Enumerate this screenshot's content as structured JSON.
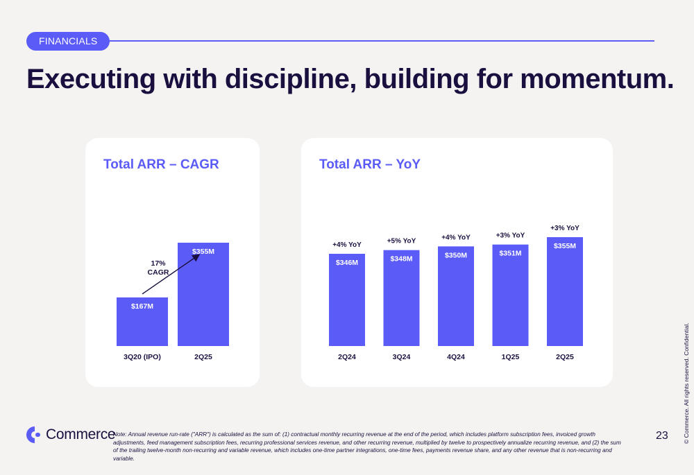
{
  "header": {
    "section_label": "FINANCIALS",
    "headline": "Executing with discipline, building for momentum."
  },
  "colors": {
    "accent": "#5b5bf7",
    "text": "#1b0f3f",
    "card": "#ffffff",
    "background": "#f4f3f2"
  },
  "chart_data": [
    {
      "type": "bar",
      "title": "Total ARR – CAGR",
      "categories": [
        "3Q20 (IPO)",
        "2Q25"
      ],
      "values": [
        167,
        355
      ],
      "value_labels": [
        "$167M",
        "$355M"
      ],
      "units": "$M",
      "annotation": {
        "line1": "17%",
        "line2": "CAGR"
      },
      "ylim": [
        0,
        380
      ]
    },
    {
      "type": "bar",
      "title": "Total ARR – YoY",
      "categories": [
        "2Q24",
        "3Q24",
        "4Q24",
        "1Q25",
        "2Q25"
      ],
      "values": [
        346,
        348,
        350,
        351,
        355
      ],
      "value_labels": [
        "$346M",
        "$348M",
        "$350M",
        "$351M",
        "$355M"
      ],
      "growth_labels": [
        "+4% YoY",
        "+5% YoY",
        "+4% YoY",
        "+3% YoY",
        "+3% YoY"
      ],
      "units": "$M"
    }
  ],
  "footer": {
    "brand": "Commerce",
    "note": "Note: Annual revenue run-rate (\"ARR\") is calculated as the sum of: (1) contractual monthly recurring revenue at the end of the period, which includes platform subscription fees, invoiced growth adjustments, feed management subscription fees, recurring professional services revenue, and other recurring revenue, multiplied by twelve to prospectively annualize recurring revenue, and (2) the sum of the trailing twelve-month non-recurring and variable revenue, which includes one-time partner integrations, one-time fees, payments revenue share, and any other revenue that is non-recurring and variable.",
    "page_number": "23",
    "copyright": "© Commerce. All rights reserved. Confidential."
  }
}
